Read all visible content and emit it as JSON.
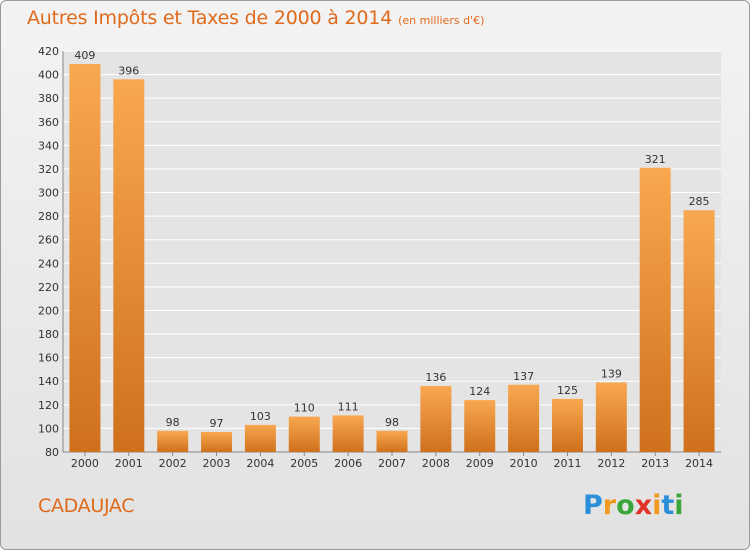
{
  "header": {
    "title": "Autres Impôts et Taxes de 2000 à 2014",
    "subtitle": "(en milliers d'€)"
  },
  "footer": {
    "commune": "CADAUJAC",
    "logo_letters": [
      "P",
      "r",
      "o",
      "x",
      "i",
      "t",
      "i"
    ],
    "logo_colors": [
      "#2a8fd8",
      "#f29a1f",
      "#3aa63a",
      "#e0332a",
      "#f29a1f",
      "#2a8fd8",
      "#3aa63a"
    ]
  },
  "colors": {
    "bar_light": "#f8a850",
    "bar_dark": "#d0701c",
    "accent": "#e06a1b",
    "grid": "#ffffff"
  },
  "chart_data": {
    "type": "bar",
    "title": "Autres Impôts et Taxes de 2000 à 2014",
    "subtitle": "(en milliers d'€)",
    "categories": [
      "2000",
      "2001",
      "2002",
      "2003",
      "2004",
      "2005",
      "2006",
      "2007",
      "2008",
      "2009",
      "2010",
      "2011",
      "2012",
      "2013",
      "2014"
    ],
    "values": [
      409,
      396,
      98,
      97,
      103,
      110,
      111,
      98,
      136,
      124,
      137,
      125,
      139,
      321,
      285
    ],
    "ylim": [
      80,
      420
    ],
    "yticks": [
      80,
      100,
      120,
      140,
      160,
      180,
      200,
      220,
      240,
      260,
      280,
      300,
      320,
      340,
      360,
      380,
      400,
      420
    ],
    "grid": true,
    "data_labels": true
  }
}
